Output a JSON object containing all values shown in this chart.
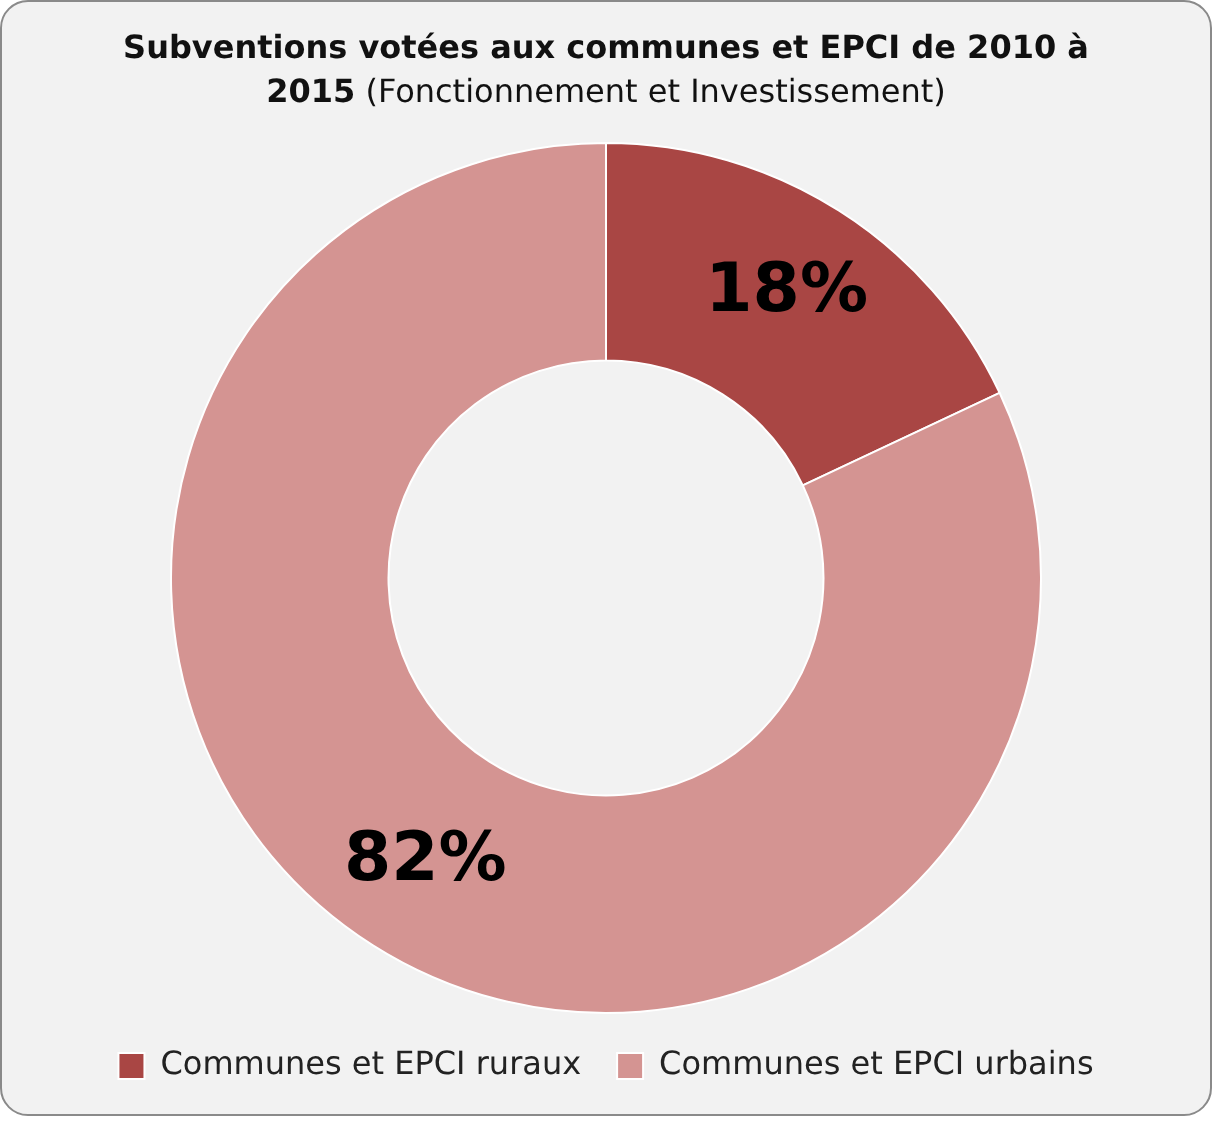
{
  "chart_data": {
    "type": "donut",
    "title": "Subventions votées aux communes et EPCI de 2010 à 2015",
    "subtitle": "(Fonctionnement et Investissement)",
    "categories": [
      "Communes et EPCI ruraux",
      "Communes et EPCI urbains"
    ],
    "values": [
      18,
      82
    ],
    "colors": [
      "#a94644",
      "#d49492"
    ],
    "value_labels": [
      "18%",
      "82%"
    ],
    "legend": "bottom"
  }
}
